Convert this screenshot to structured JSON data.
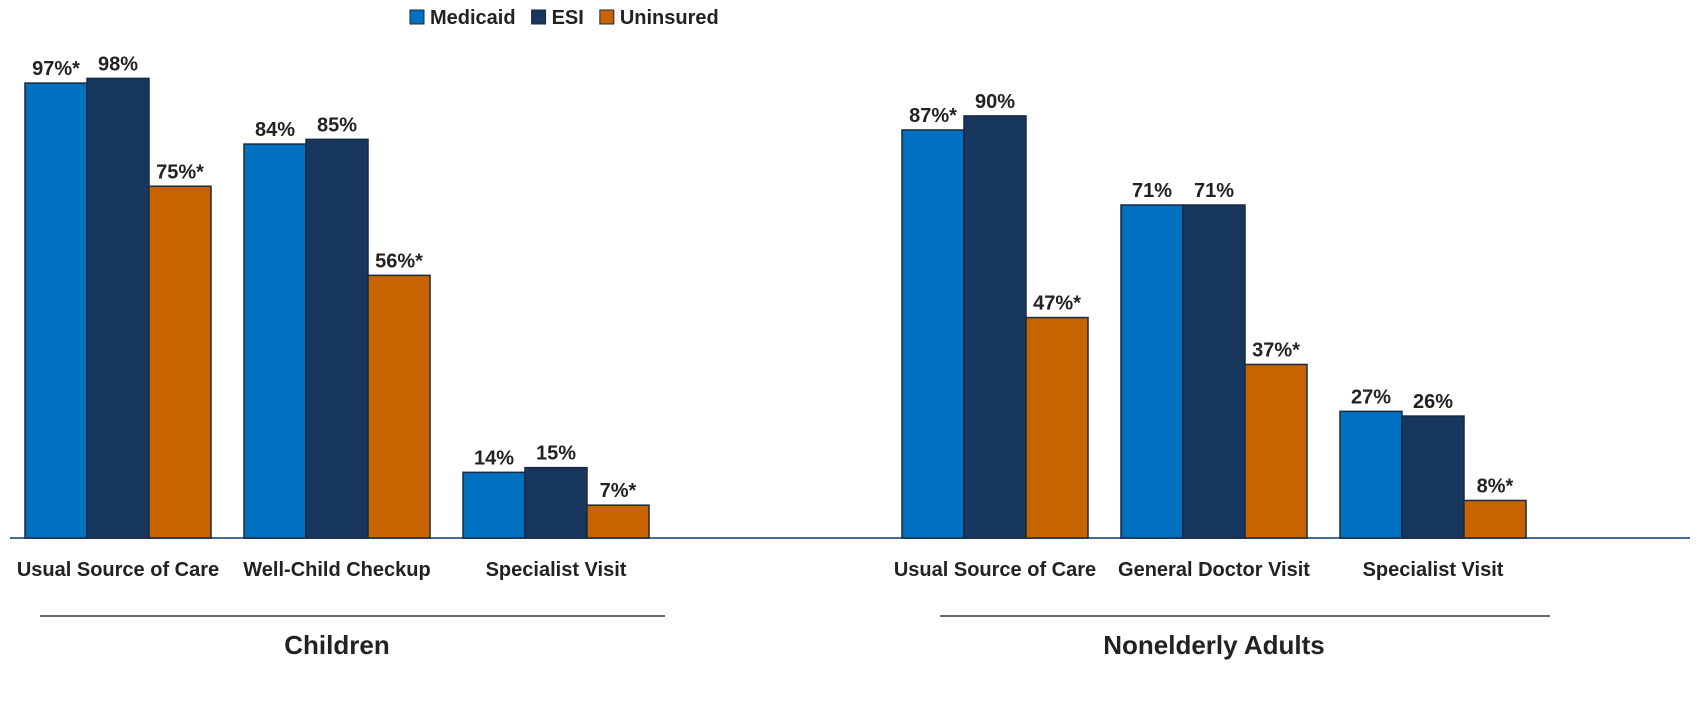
{
  "chart_data": {
    "type": "bar",
    "groups": [
      {
        "name": "Children",
        "categories": [
          "Usual Source of Care",
          "Well-Child Checkup",
          "Specialist Visit"
        ]
      },
      {
        "name": "Nonelderly Adults",
        "categories": [
          "Usual Source of Care",
          "General Doctor Visit",
          "Specialist Visit"
        ]
      }
    ],
    "series": [
      {
        "name": "Medicaid",
        "color": "#0070c0",
        "values": [
          [
            97,
            84,
            14
          ],
          [
            87,
            71,
            27
          ]
        ],
        "value_labels": [
          [
            "97%*",
            "84%",
            "14%"
          ],
          [
            "87%*",
            "71%",
            "27%"
          ]
        ]
      },
      {
        "name": "ESI",
        "color": "#17375e",
        "values": [
          [
            98,
            85,
            15
          ],
          [
            90,
            71,
            26
          ]
        ],
        "value_labels": [
          [
            "98%",
            "85%",
            "15%"
          ],
          [
            "90%",
            "71%",
            "26%"
          ]
        ]
      },
      {
        "name": "Uninsured",
        "color": "#c86400",
        "values": [
          [
            75,
            56,
            7
          ],
          [
            47,
            37,
            8
          ]
        ],
        "value_labels": [
          [
            "75%*",
            "56%*",
            "7%*"
          ],
          [
            "47%*",
            "37%*",
            "8%*"
          ]
        ]
      }
    ],
    "legend": "top"
  }
}
